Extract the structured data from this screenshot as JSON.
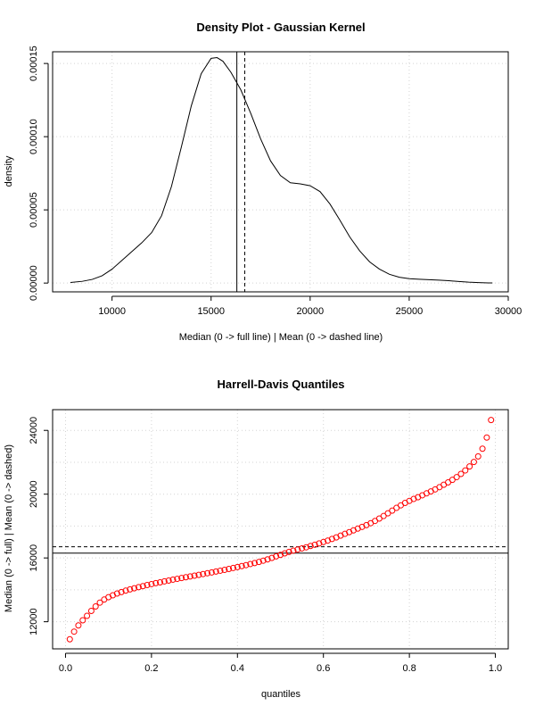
{
  "chart_data": [
    {
      "type": "line",
      "title": "Density Plot - Gaussian Kernel",
      "xlabel": "Median (0 -> full line) | Mean (0 -> dashed line)",
      "ylabel": "density",
      "xlim": [
        7000,
        30000
      ],
      "ylim": [
        -6e-06,
        0.000158
      ],
      "x_ticks": [
        10000,
        15000,
        20000,
        25000,
        30000
      ],
      "x_tick_labels": [
        "10000",
        "15000",
        "20000",
        "25000",
        "30000"
      ],
      "y_ticks": [
        0,
        5e-05,
        0.0001,
        0.00015
      ],
      "y_tick_labels": [
        "0.00000",
        "0.00005",
        "0.00010",
        "0.00015"
      ],
      "grid": true,
      "median": 16300,
      "mean": 16700,
      "series": [
        {
          "x": [
            7900,
            8500,
            9000,
            9500,
            10000,
            10500,
            11000,
            11500,
            12000,
            12500,
            13000,
            13500,
            14000,
            14500,
            15000,
            15300,
            15600,
            16000,
            16500,
            17000,
            17500,
            18000,
            18500,
            19000,
            19500,
            20000,
            20500,
            21000,
            21500,
            22000,
            22500,
            23000,
            23500,
            24000,
            24500,
            25000,
            25500,
            26000,
            26500,
            27000,
            27500,
            28000,
            28500,
            29000,
            29200
          ],
          "y": [
            4e-07,
            1.2e-06,
            2.5e-06,
            5e-06,
            9.5e-06,
            1.55e-05,
            2.15e-05,
            2.75e-05,
            3.45e-05,
            4.6e-05,
            6.6e-05,
            9.3e-05,
            0.000121,
            0.000143,
            0.0001535,
            0.000154,
            0.0001515,
            0.000144,
            0.000132,
            0.000116,
            9.85e-05,
            8.35e-05,
            7.35e-05,
            6.85e-05,
            6.78e-05,
            6.65e-05,
            6.25e-05,
            5.4e-05,
            4.3e-05,
            3.15e-05,
            2.2e-05,
            1.45e-05,
            9.5e-06,
            6e-06,
            4e-06,
            3e-06,
            2.6e-06,
            2.3e-06,
            2e-06,
            1.6e-06,
            1.1e-06,
            6e-07,
            3e-07,
            1e-07,
            1e-07
          ]
        }
      ]
    },
    {
      "type": "scatter",
      "title": "Harrell-Davis Quantiles",
      "xlabel": "quantiles",
      "ylabel": "Median (0 -> full) | Mean (0 -> dashed)",
      "xlim": [
        -0.03,
        1.03
      ],
      "ylim": [
        10300,
        25300
      ],
      "x_ticks": [
        0,
        0.2,
        0.4,
        0.6,
        0.8,
        1.0
      ],
      "x_tick_labels": [
        "0.0",
        "0.2",
        "0.4",
        "0.6",
        "0.8",
        "1.0"
      ],
      "y_ticks": [
        12000,
        16000,
        20000,
        24000
      ],
      "y_tick_labels": [
        "12000",
        "16000",
        "20000",
        "24000"
      ],
      "minor_y_gridlines": [
        14000,
        18000,
        22000
      ],
      "grid": true,
      "median": 16300,
      "mean": 16700,
      "series": [
        {
          "color": "#ff0000",
          "x": [
            0.01,
            0.02,
            0.03,
            0.04,
            0.05,
            0.06,
            0.07,
            0.08,
            0.09,
            0.1,
            0.11,
            0.12,
            0.13,
            0.14,
            0.15,
            0.16,
            0.17,
            0.18,
            0.19,
            0.2,
            0.21,
            0.22,
            0.23,
            0.24,
            0.25,
            0.26,
            0.27,
            0.28,
            0.29,
            0.3,
            0.31,
            0.32,
            0.33,
            0.34,
            0.35,
            0.36,
            0.37,
            0.38,
            0.39,
            0.4,
            0.41,
            0.42,
            0.43,
            0.44,
            0.45,
            0.46,
            0.47,
            0.48,
            0.49,
            0.5,
            0.51,
            0.52,
            0.53,
            0.54,
            0.55,
            0.56,
            0.57,
            0.58,
            0.59,
            0.6,
            0.61,
            0.62,
            0.63,
            0.64,
            0.65,
            0.66,
            0.67,
            0.68,
            0.69,
            0.7,
            0.71,
            0.72,
            0.73,
            0.74,
            0.75,
            0.76,
            0.77,
            0.78,
            0.79,
            0.8,
            0.81,
            0.82,
            0.83,
            0.84,
            0.85,
            0.86,
            0.87,
            0.88,
            0.89,
            0.9,
            0.91,
            0.92,
            0.93,
            0.94,
            0.95,
            0.96,
            0.97,
            0.98,
            0.99
          ],
          "y": [
            10900,
            11380,
            11770,
            12090,
            12370,
            12680,
            12960,
            13200,
            13390,
            13540,
            13660,
            13770,
            13860,
            13950,
            14030,
            14100,
            14170,
            14230,
            14300,
            14360,
            14420,
            14470,
            14530,
            14580,
            14640,
            14690,
            14740,
            14790,
            14840,
            14890,
            14940,
            14990,
            15040,
            15090,
            15150,
            15200,
            15250,
            15310,
            15370,
            15430,
            15490,
            15550,
            15620,
            15680,
            15750,
            15830,
            15910,
            16000,
            16100,
            16190,
            16290,
            16380,
            16460,
            16530,
            16600,
            16670,
            16750,
            16830,
            16910,
            17000,
            17090,
            17190,
            17290,
            17400,
            17510,
            17620,
            17730,
            17840,
            17950,
            18060,
            18180,
            18320,
            18470,
            18630,
            18800,
            18970,
            19140,
            19300,
            19450,
            19580,
            19700,
            19810,
            19930,
            20050,
            20170,
            20300,
            20440,
            20590,
            20740,
            20900,
            21070,
            21270,
            21490,
            21740,
            22020,
            22370,
            22850,
            23550,
            24650
          ]
        }
      ]
    }
  ]
}
